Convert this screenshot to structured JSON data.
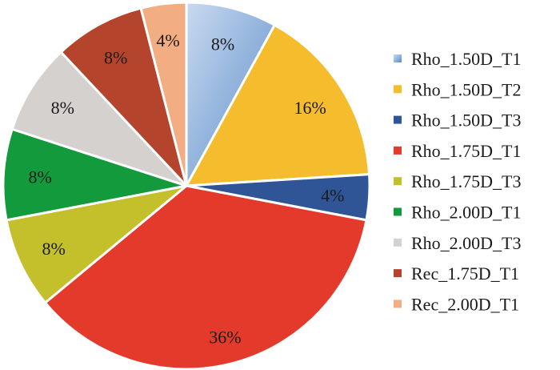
{
  "chart_data": {
    "type": "pie",
    "title": "",
    "legend_position": "right",
    "slices": [
      {
        "label": "Rho_1.50D_T1",
        "value": 8,
        "text": "8%",
        "color": "#6f9fd3"
      },
      {
        "label": "Rho_1.50D_T2",
        "value": 16,
        "text": "16%",
        "color": "#f5bd2e"
      },
      {
        "label": "Rho_1.50D_T3",
        "value": 4,
        "text": "4%",
        "color": "#2f5597"
      },
      {
        "label": "Rho_1.75D_T1",
        "value": 36,
        "text": "36%",
        "color": "#e33a2c"
      },
      {
        "label": "Rho_1.75D_T3",
        "value": 8,
        "text": "8%",
        "color": "#c4c02c"
      },
      {
        "label": "Rho_2.00D_T1",
        "value": 8,
        "text": "8%",
        "color": "#139a3c"
      },
      {
        "label": "Rho_2.00D_T3",
        "value": 8,
        "text": "8%",
        "color": "#d5d1ce"
      },
      {
        "label": "Rec_1.75D_T1",
        "value": 8,
        "text": "8%",
        "color": "#b4452c"
      },
      {
        "label": "Rec_2.00D_T1",
        "value": 4,
        "text": "4%",
        "color": "#f2ad83"
      }
    ]
  }
}
